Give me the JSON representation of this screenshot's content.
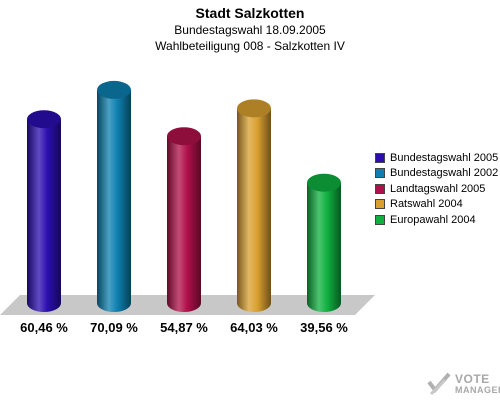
{
  "header": {
    "title": "Stadt Salzkotten",
    "subtitle": "Bundestagswahl 18.09.2005",
    "subtitle2": "Wahlbeteiligung 008 - Salzkotten IV"
  },
  "chart_data": {
    "type": "bar",
    "categories": [
      "Bundestagswahl 2005",
      "Bundestagswahl 2002",
      "Landtagswahl 2005",
      "Ratswahl 2004",
      "Europawahl 2004"
    ],
    "values": [
      60.46,
      70.09,
      54.87,
      64.03,
      39.56
    ],
    "value_labels": [
      "60,46 %",
      "70,09 %",
      "54,87 %",
      "64,03 %",
      "39,56 %"
    ],
    "colors": [
      "#2c0eb0",
      "#0e80b0",
      "#b0104a",
      "#d9a030",
      "#10b040"
    ],
    "legend_position": "right",
    "grid": false
  },
  "logo": {
    "text1": "VOTE",
    "text2": "MANAGER"
  }
}
